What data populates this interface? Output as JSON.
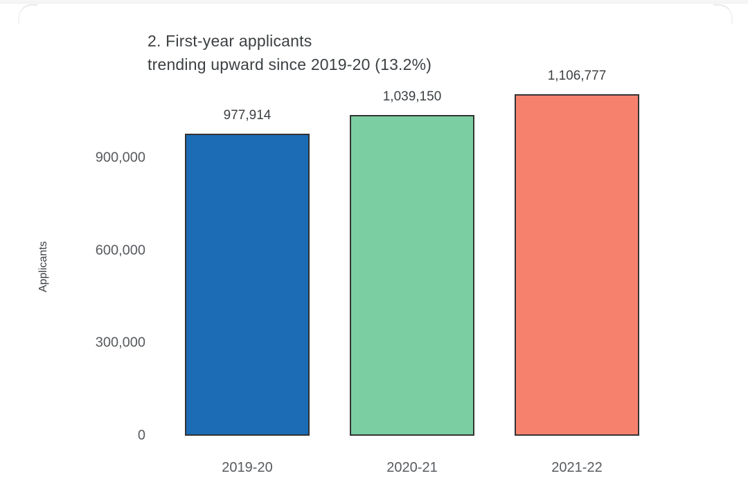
{
  "page": {
    "title_line1": "2. First-year applicants",
    "title_line2": "trending upward since 2019-20 (13.2%)"
  },
  "chart_data": {
    "type": "bar",
    "title": "2. First-year applicants trending upward since 2019-20 (13.2%)",
    "categories": [
      "2019-20",
      "2020-21",
      "2021-22"
    ],
    "values": [
      977914,
      1039150,
      1106777
    ],
    "value_labels": [
      "977,914",
      "1,039,150",
      "1,106,777"
    ],
    "bar_colors": [
      "#1b6cb5",
      "#7bcea1",
      "#f6826e"
    ],
    "bar_border_color": "#333333",
    "xlabel": "",
    "ylabel": "Applicants",
    "ylim": [
      0,
      1200000
    ],
    "yticks": [
      0,
      300000,
      600000,
      900000
    ],
    "ytick_labels": [
      "0",
      "300,000",
      "600,000",
      "900,000"
    ],
    "grid": false,
    "legend": null
  }
}
